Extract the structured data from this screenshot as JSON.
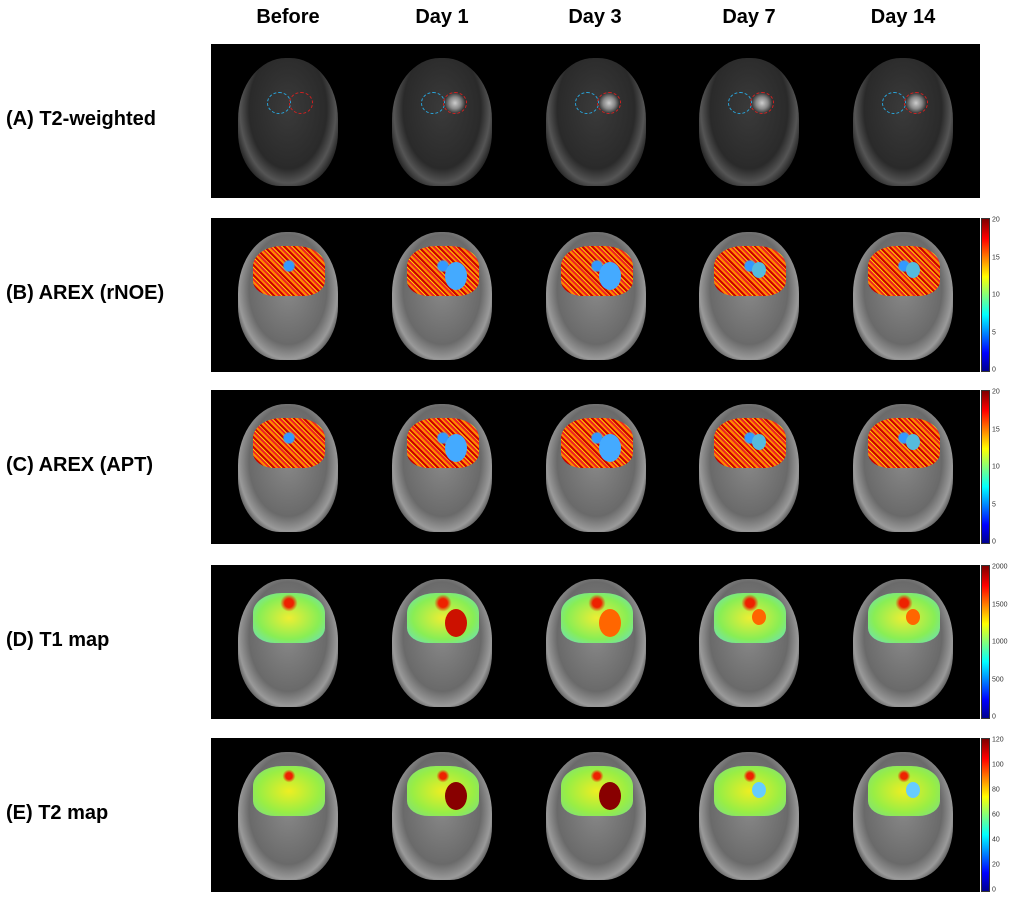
{
  "columns": [
    "Before",
    "Day 1",
    "Day 3",
    "Day 7",
    "Day 14"
  ],
  "rows": [
    {
      "label": "(A) T2-weighted",
      "type": "t2w",
      "colorbar": null
    },
    {
      "label": "(B) AREX (rNOE)",
      "type": "arex",
      "colorbar": {
        "ticks": [
          "20",
          "15",
          "10",
          "5",
          "0"
        ],
        "colormap": "jet"
      }
    },
    {
      "label": "(C) AREX (APT)",
      "type": "arex",
      "colorbar": {
        "ticks": [
          "20",
          "15",
          "10",
          "5",
          "0"
        ],
        "colormap": "jet"
      }
    },
    {
      "label": "(D) T1 map",
      "type": "t1",
      "colorbar": {
        "ticks": [
          "2000",
          "1500",
          "1000",
          "500",
          "0"
        ],
        "colormap": "jet"
      }
    },
    {
      "label": "(E) T2 map",
      "type": "t2",
      "colorbar": {
        "ticks": [
          "120",
          "100",
          "80",
          "60",
          "40",
          "20",
          "0"
        ],
        "colormap": "jet"
      }
    }
  ],
  "roi_colors": {
    "contralateral": "#29a8e0",
    "lesion": "#d62020"
  }
}
